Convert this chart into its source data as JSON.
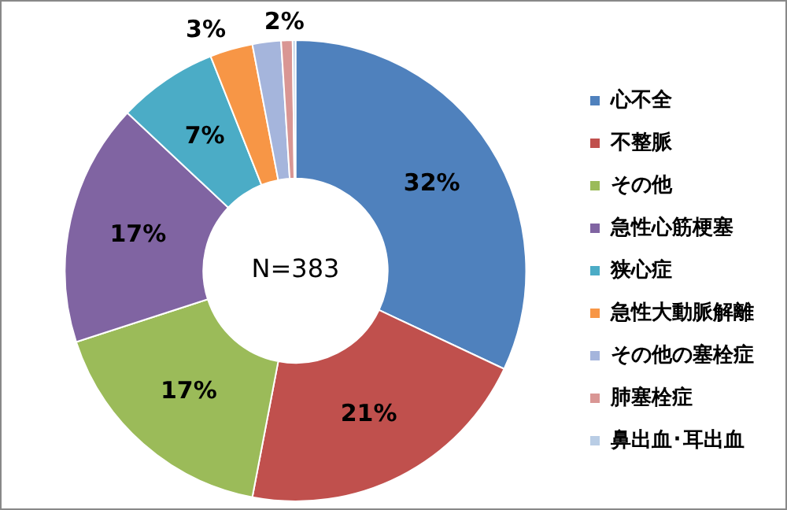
{
  "chart_data": {
    "type": "donut",
    "categories": [
      "心不全",
      "不整脈",
      "その他",
      "急性心筋梗塞",
      "狭心症",
      "急性大動脈解離",
      "その他の塞栓症",
      "肺塞栓症",
      "鼻出血･耳出血"
    ],
    "values": [
      32,
      21,
      17,
      17,
      7,
      3,
      2,
      0.8,
      0.2
    ],
    "value_labels": [
      "32%",
      "21%",
      "17%",
      "17%",
      "7%",
      "3%",
      "2%",
      null,
      null
    ],
    "colors": [
      "#4f81bd",
      "#c0504d",
      "#9bbb59",
      "#8064a2",
      "#4bacc6",
      "#f79646",
      "#a5b5dc",
      "#d99694",
      "#b9cde5"
    ],
    "annotations": [
      "N=383"
    ],
    "legend": "right"
  }
}
